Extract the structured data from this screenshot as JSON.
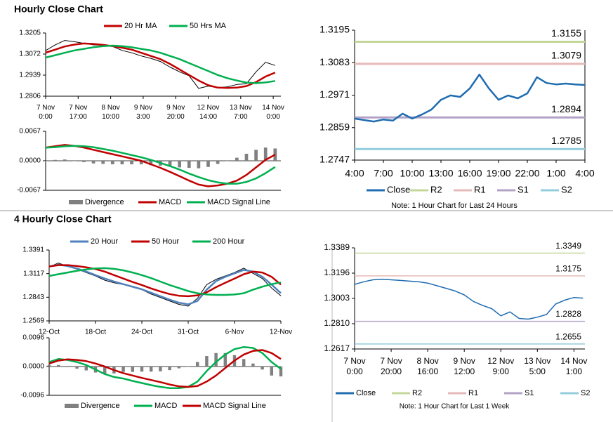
{
  "chart_data": [
    {
      "type": "line",
      "title": "Hourly Close Chart",
      "x": [
        0,
        5,
        10,
        15,
        20,
        25,
        30,
        35,
        40,
        45,
        50,
        55,
        60,
        65,
        70,
        75,
        80,
        85,
        90,
        95,
        100,
        105,
        110,
        115,
        120
      ],
      "xlim": [
        0,
        123
      ],
      "xticks": [
        {
          "value": 0,
          "label": "7 Nov\n0:00"
        },
        {
          "value": 17,
          "label": "7 Nov\n17:00"
        },
        {
          "value": 34,
          "label": "8 Nov\n10:00"
        },
        {
          "value": 51,
          "label": "9 Nov\n3:00"
        },
        {
          "value": 68,
          "label": "9 Nov\n20:00"
        },
        {
          "value": 85,
          "label": "12 Nov\n14:00"
        },
        {
          "value": 102,
          "label": "13 Nov\n7:00"
        },
        {
          "value": 119,
          "label": "14 Nov\n0:00"
        }
      ],
      "ylim": [
        1.2806,
        1.3205
      ],
      "yticks": [
        1.3205,
        1.3072,
        1.2939,
        1.2806
      ],
      "series": [
        {
          "color": "#000000",
          "values": [
            1.3094,
            1.313,
            1.3158,
            1.315,
            1.314,
            1.313,
            1.3128,
            1.312,
            1.3095,
            1.308,
            1.306,
            1.3045,
            1.3025,
            1.299,
            1.296,
            1.2935,
            1.2855,
            1.287,
            1.286,
            1.2865,
            1.288,
            1.2885,
            1.296,
            1.302,
            1.3
          ]
        },
        {
          "name": "20 Hr MA",
          "color": "#c00000",
          "values": [
            1.3081,
            1.31,
            1.312,
            1.3132,
            1.3139,
            1.3136,
            1.313,
            1.3122,
            1.3112,
            1.31,
            1.308,
            1.306,
            1.304,
            1.301,
            1.2975,
            1.294,
            1.2905,
            1.2875,
            1.286,
            1.2858,
            1.286,
            1.287,
            1.2895,
            1.293,
            1.2955
          ]
        },
        {
          "name": "50 Hrs MA",
          "color": "#00b050",
          "values": [
            1.305,
            1.3065,
            1.308,
            1.3095,
            1.3105,
            1.3115,
            1.3122,
            1.3125,
            1.3122,
            1.3115,
            1.3105,
            1.3095,
            1.308,
            1.306,
            1.304,
            1.3015,
            1.299,
            1.2965,
            1.294,
            1.292,
            1.2905,
            1.2892,
            1.2888,
            1.2893,
            1.2902
          ]
        }
      ]
    },
    {
      "type": "line",
      "x": [
        0,
        5,
        10,
        15,
        20,
        25,
        30,
        35,
        40,
        45,
        50,
        55,
        60,
        65,
        70,
        75,
        80,
        85,
        90,
        95,
        100,
        105,
        110,
        115,
        120
      ],
      "xlim": [
        0,
        123
      ],
      "ylim": [
        -0.0067,
        0.0067
      ],
      "yticks": [
        0.0067,
        {
          "value": 0,
          "label": "0.0000"
        },
        -0.0067
      ],
      "series": [
        {
          "name": "Divergence",
          "type": "bar",
          "color": "#808080",
          "values": [
            0,
            0.0002,
            0.0003,
            0,
            -0.0003,
            -0.0006,
            -0.0007,
            -0.0008,
            -0.0008,
            -0.0008,
            -0.0008,
            -0.001,
            -0.0011,
            -0.0013,
            -0.0015,
            -0.0016,
            -0.0017,
            -0.0014,
            -0.0007,
            0,
            0.0007,
            0.0016,
            0.0025,
            0.003,
            0.0028
          ]
        },
        {
          "name": "MACD",
          "color": "#c00000",
          "values": [
            0.003,
            0.0033,
            0.0036,
            0.0034,
            0.003,
            0.0025,
            0.002,
            0.0015,
            0.001,
            0.0005,
            0,
            -0.0008,
            -0.0016,
            -0.0025,
            -0.0035,
            -0.0045,
            -0.0054,
            -0.0058,
            -0.0056,
            -0.0052,
            -0.0045,
            -0.0032,
            -0.0015,
            0.0002,
            0.0014
          ]
        },
        {
          "name": "MACD Signal Line",
          "color": "#00b050",
          "values": [
            0.003,
            0.0031,
            0.0033,
            0.0034,
            0.0033,
            0.0031,
            0.0027,
            0.0023,
            0.0018,
            0.0013,
            0.0008,
            0.0002,
            -0.0005,
            -0.0012,
            -0.002,
            -0.0029,
            -0.0037,
            -0.0044,
            -0.0049,
            -0.0052,
            -0.0052,
            -0.0048,
            -0.004,
            -0.0028,
            -0.0014
          ]
        }
      ]
    },
    {
      "type": "line",
      "note": "Note: 1 Hour Chart for Last 24 Hours",
      "x": [
        0,
        1,
        2,
        3,
        4,
        5,
        6,
        7,
        8,
        9,
        10,
        11,
        12,
        13,
        14,
        15,
        16,
        17,
        18,
        19,
        20,
        21,
        22,
        23,
        24
      ],
      "xlim": [
        0,
        24
      ],
      "xticks": [
        {
          "value": 0,
          "label": "4:00"
        },
        {
          "value": 3,
          "label": "7:00"
        },
        {
          "value": 6,
          "label": "10:00"
        },
        {
          "value": 9,
          "label": "13:00"
        },
        {
          "value": 12,
          "label": "16:00"
        },
        {
          "value": 15,
          "label": "19:00"
        },
        {
          "value": 18,
          "label": "22:00"
        },
        {
          "value": 21,
          "label": "1:00"
        },
        {
          "value": 24,
          "label": "4:00"
        }
      ],
      "ylim": [
        1.2747,
        1.3195
      ],
      "yticks": [
        1.3195,
        1.3083,
        1.2971,
        1.2859,
        1.2747
      ],
      "series": [
        {
          "name": "Close",
          "color": "#1f6cb0",
          "values": [
            1.289,
            1.2885,
            1.288,
            1.2887,
            1.2883,
            1.2907,
            1.289,
            1.2904,
            1.2921,
            1.2955,
            1.297,
            1.2965,
            1.2994,
            1.3042,
            1.2994,
            1.2955,
            1.297,
            1.296,
            1.2977,
            1.3033,
            1.3013,
            1.3008,
            1.3011,
            1.3008,
            1.3006
          ]
        }
      ],
      "levels": [
        {
          "name": "R2",
          "color": "#c4d79b",
          "value": 1.3155
        },
        {
          "name": "R1",
          "color": "#e6b9b8",
          "value": 1.3079
        },
        {
          "name": "S1",
          "color": "#b3a2c7",
          "value": 1.2894
        },
        {
          "name": "S2",
          "color": "#93cddd",
          "value": 1.2785
        }
      ]
    },
    {
      "type": "line",
      "title": "4 Hourly Close Chart",
      "x": [
        0,
        4,
        8,
        12,
        16,
        20,
        24,
        28,
        32,
        36,
        40,
        44,
        48,
        52,
        56,
        60,
        64,
        68,
        72,
        76,
        80,
        84,
        88,
        92,
        96,
        100
      ],
      "xlim": [
        0,
        100
      ],
      "xticks": [
        {
          "value": 0,
          "label": "12-Oct"
        },
        {
          "value": 20,
          "label": "18-Oct"
        },
        {
          "value": 40,
          "label": "24-Oct"
        },
        {
          "value": 60,
          "label": "31-Oct"
        },
        {
          "value": 80,
          "label": "6-Nov"
        },
        {
          "value": 100,
          "label": "12-Nov"
        }
      ],
      "ylim": [
        1.2569,
        1.3391
      ],
      "yticks": [
        1.3391,
        1.3117,
        1.2843,
        1.2569
      ],
      "series": [
        {
          "color": "#000000",
          "values": [
            1.3195,
            1.324,
            1.32,
            1.317,
            1.313,
            1.309,
            1.304,
            1.301,
            1.299,
            1.296,
            1.293,
            1.288,
            1.284,
            1.28,
            1.276,
            1.274,
            1.283,
            1.299,
            1.305,
            1.309,
            1.313,
            1.318,
            1.312,
            1.306,
            1.295,
            1.286
          ]
        },
        {
          "name": "20 Hour",
          "color": "#4f81bd",
          "values": [
            1.32,
            1.322,
            1.3205,
            1.3175,
            1.314,
            1.31,
            1.306,
            1.3025,
            1.2995,
            1.2965,
            1.2935,
            1.2895,
            1.2855,
            1.2815,
            1.278,
            1.276,
            1.28,
            1.293,
            1.303,
            1.308,
            1.312,
            1.316,
            1.314,
            1.308,
            1.299,
            1.289
          ]
        },
        {
          "name": "50 Hour",
          "color": "#c00000",
          "values": [
            1.32,
            1.3215,
            1.3215,
            1.3205,
            1.319,
            1.317,
            1.314,
            1.31,
            1.306,
            1.302,
            1.2985,
            1.2945,
            1.291,
            1.288,
            1.286,
            1.2855,
            1.2865,
            1.29,
            1.296,
            1.301,
            1.306,
            1.311,
            1.314,
            1.313,
            1.308,
            1.299
          ]
        },
        {
          "name": "200 Hour",
          "color": "#00b050",
          "values": [
            1.309,
            1.311,
            1.313,
            1.315,
            1.3165,
            1.3178,
            1.318,
            1.3172,
            1.3155,
            1.313,
            1.31,
            1.3065,
            1.3025,
            1.2985,
            1.295,
            1.2915,
            1.289,
            1.2875,
            1.287,
            1.287,
            1.2875,
            1.289,
            1.293,
            1.2965,
            1.2995,
            1.3015
          ]
        }
      ]
    },
    {
      "type": "line",
      "x": [
        0,
        4,
        8,
        12,
        16,
        20,
        24,
        28,
        32,
        36,
        40,
        44,
        48,
        52,
        56,
        60,
        64,
        68,
        72,
        76,
        80,
        84,
        88,
        92,
        96,
        100
      ],
      "xlim": [
        0,
        100
      ],
      "ylim": [
        -0.0096,
        0.0096
      ],
      "yticks": [
        0.0096,
        {
          "value": 0,
          "label": "0.0000"
        },
        -0.0096
      ],
      "series": [
        {
          "name": "Divergence",
          "type": "bar",
          "color": "#808080",
          "values": [
            0.0005,
            0.0005,
            -0.0002,
            -0.0007,
            -0.0013,
            -0.002,
            -0.0025,
            -0.0023,
            -0.0018,
            -0.0018,
            -0.0017,
            -0.0017,
            -0.0016,
            -0.0012,
            -0.0006,
            0,
            0.0015,
            0.0035,
            0.0045,
            0.0045,
            0.0038,
            0.0025,
            0.001,
            -0.001,
            -0.003,
            -0.0033
          ]
        },
        {
          "name": "MACD",
          "color": "#00b050",
          "values": [
            0.0015,
            0.0025,
            0.0022,
            0.0015,
            0.0005,
            -0.001,
            -0.0025,
            -0.0035,
            -0.004,
            -0.0048,
            -0.0055,
            -0.0062,
            -0.0068,
            -0.0072,
            -0.0072,
            -0.0068,
            -0.005,
            -0.0015,
            0.0015,
            0.004,
            0.0058,
            0.0065,
            0.0062,
            0.0045,
            0.0015,
            -0.0008
          ]
        },
        {
          "name": "MACD Signal Line",
          "color": "#c00000",
          "values": [
            0.001,
            0.002,
            0.0024,
            0.0022,
            0.0018,
            0.001,
            0,
            -0.0012,
            -0.0022,
            -0.003,
            -0.0038,
            -0.0045,
            -0.0052,
            -0.006,
            -0.0066,
            -0.0068,
            -0.0065,
            -0.005,
            -0.003,
            -0.0005,
            0.002,
            0.004,
            0.0052,
            0.0055,
            0.0045,
            0.0025
          ]
        }
      ]
    },
    {
      "type": "line",
      "note": "Note: 1 Hour Chart for Last 1 Week",
      "x": [
        0,
        5,
        10,
        15,
        20,
        25,
        30,
        35,
        40,
        45,
        50,
        55,
        60,
        65,
        70,
        75,
        80,
        85,
        90,
        95,
        100,
        105,
        110,
        115,
        120,
        125
      ],
      "xlim": [
        0,
        126
      ],
      "xticks": [
        {
          "value": 0,
          "label": "7 Nov\n0:00"
        },
        {
          "value": 20,
          "label": "7 Nov\n20:00"
        },
        {
          "value": 40,
          "label": "8 Nov\n16:00"
        },
        {
          "value": 60,
          "label": "9 Nov\n12:00"
        },
        {
          "value": 80,
          "label": "12 Nov\n9:00"
        },
        {
          "value": 100,
          "label": "13 Nov\n5:00"
        },
        {
          "value": 120,
          "label": "14 Nov\n1:00"
        }
      ],
      "ylim": [
        1.2617,
        1.3389
      ],
      "yticks": [
        1.3389,
        1.3196,
        1.3003,
        {
          "value": 1.281,
          "label": "1.2810"
        },
        1.2617
      ],
      "series": [
        {
          "name": "Close",
          "color": "#1f6cb0",
          "values": [
            1.311,
            1.313,
            1.3145,
            1.315,
            1.3145,
            1.314,
            1.3135,
            1.313,
            1.312,
            1.31,
            1.308,
            1.306,
            1.303,
            1.298,
            1.295,
            1.2925,
            1.287,
            1.29,
            1.285,
            1.2845,
            1.286,
            1.288,
            1.296,
            1.299,
            1.301,
            1.3005
          ]
        }
      ],
      "levels": [
        {
          "name": "R2",
          "color": "#c4d79b",
          "value": 1.3349
        },
        {
          "name": "R1",
          "color": "#e6b9b8",
          "value": 1.3175
        },
        {
          "name": "S1",
          "color": "#b3a2c7",
          "value": 1.2828
        },
        {
          "name": "S2",
          "color": "#93cddd",
          "value": 1.2655
        }
      ]
    }
  ]
}
